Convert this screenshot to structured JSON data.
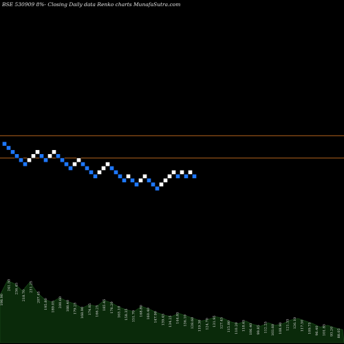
{
  "header": {
    "title": "BSE 530909 8%-  Closing Daily data  Renko  charts MunafaSutra.com"
  },
  "chart_data": {
    "type": "renko",
    "title": "BSE 530909 8%-  Closing Daily data  Renko  charts MunafaSutra.com",
    "reference_lines": [
      {
        "name": "upper",
        "y_level": -2.0,
        "color": "#b5651d"
      },
      {
        "name": "lower",
        "y_level": 3.5,
        "color": "#b5651d"
      }
    ],
    "colors": {
      "up": "#ffffff",
      "down": "#1e78ff",
      "background": "#000000",
      "volume_fill": "#0a2a0a",
      "volume_line": "#1a4a1a"
    },
    "bricks": [
      {
        "level": 0,
        "dir": "down"
      },
      {
        "level": 1,
        "dir": "down"
      },
      {
        "level": 2,
        "dir": "down"
      },
      {
        "level": 3,
        "dir": "down"
      },
      {
        "level": 4,
        "dir": "down"
      },
      {
        "level": 5,
        "dir": "down"
      },
      {
        "level": 4,
        "dir": "up"
      },
      {
        "level": 3,
        "dir": "up"
      },
      {
        "level": 2,
        "dir": "up"
      },
      {
        "level": 3,
        "dir": "down"
      },
      {
        "level": 4,
        "dir": "down"
      },
      {
        "level": 3,
        "dir": "up"
      },
      {
        "level": 2,
        "dir": "up"
      },
      {
        "level": 3,
        "dir": "down"
      },
      {
        "level": 4,
        "dir": "down"
      },
      {
        "level": 5,
        "dir": "down"
      },
      {
        "level": 6,
        "dir": "down"
      },
      {
        "level": 5,
        "dir": "up"
      },
      {
        "level": 4,
        "dir": "up"
      },
      {
        "level": 5,
        "dir": "down"
      },
      {
        "level": 6,
        "dir": "down"
      },
      {
        "level": 7,
        "dir": "down"
      },
      {
        "level": 8,
        "dir": "down"
      },
      {
        "level": 7,
        "dir": "up"
      },
      {
        "level": 6,
        "dir": "up"
      },
      {
        "level": 5,
        "dir": "up"
      },
      {
        "level": 6,
        "dir": "down"
      },
      {
        "level": 7,
        "dir": "down"
      },
      {
        "level": 8,
        "dir": "down"
      },
      {
        "level": 9,
        "dir": "down"
      },
      {
        "level": 8,
        "dir": "up"
      },
      {
        "level": 9,
        "dir": "down"
      },
      {
        "level": 10,
        "dir": "down"
      },
      {
        "level": 9,
        "dir": "up"
      },
      {
        "level": 8,
        "dir": "up"
      },
      {
        "level": 9,
        "dir": "down"
      },
      {
        "level": 10,
        "dir": "down"
      },
      {
        "level": 11,
        "dir": "down"
      },
      {
        "level": 10,
        "dir": "up"
      },
      {
        "level": 9,
        "dir": "up"
      },
      {
        "level": 8,
        "dir": "up"
      },
      {
        "level": 7,
        "dir": "up"
      },
      {
        "level": 8,
        "dir": "down"
      },
      {
        "level": 7,
        "dir": "up"
      },
      {
        "level": 8,
        "dir": "down"
      },
      {
        "level": 7,
        "dir": "up"
      },
      {
        "level": 8,
        "dir": "down"
      }
    ],
    "volume": {
      "values": [
        55,
        72,
        68,
        60,
        70,
        58,
        50,
        47,
        52,
        48,
        45,
        40,
        44,
        42,
        49,
        46,
        41,
        38,
        36,
        42,
        39,
        35,
        32,
        30,
        34,
        31,
        28,
        25,
        27,
        30,
        28,
        24,
        22,
        25,
        21,
        19,
        23,
        20,
        22,
        26,
        28,
        25,
        22,
        18,
        20,
        17,
        15
      ],
      "labels": [
        "198.90",
        "241.50",
        "236.45",
        "218.70",
        "231.25",
        "207.45",
        "195.80",
        "189.05",
        "200.60",
        "188.40",
        "179.25",
        "168.90",
        "174.85",
        "166.25",
        "185.45",
        "176.20",
        "165.10",
        "158.35",
        "151.70",
        "168.80",
        "160.40",
        "147.90",
        "139.45",
        "134.25",
        "144.85",
        "136.10",
        "128.60",
        "119.30",
        "124.70",
        "131.95",
        "127.45",
        "115.80",
        "110.20",
        "118.65",
        "106.40",
        "99.85",
        "112.25",
        "103.60",
        "108.90",
        "121.35",
        "126.10",
        "117.50",
        "109.75",
        "96.40",
        "101.85",
        "93.20",
        "88.05"
      ]
    }
  }
}
